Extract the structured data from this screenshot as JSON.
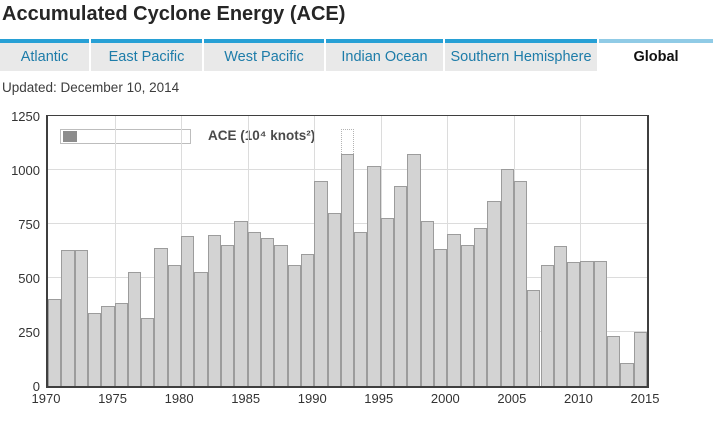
{
  "header": {
    "title": "Accumulated Cyclone Energy (ACE)"
  },
  "tabs": [
    {
      "label": "Atlantic",
      "active": false
    },
    {
      "label": "East Pacific",
      "active": false
    },
    {
      "label": "West Pacific",
      "active": false
    },
    {
      "label": "Indian Ocean",
      "active": false
    },
    {
      "label": "Southern Hemisphere",
      "active": false
    },
    {
      "label": "Global",
      "active": true
    }
  ],
  "updated_text": "Updated: December 10, 2014",
  "colors": {
    "tab_stripe": "#27a0d5",
    "tab_stripe_active": "#90cbe6",
    "tab_background": "#e9e9e9",
    "tab_text": "#1d7ca9",
    "bar_fill": "#d3d3d3",
    "bar_border": "#9c9c9c",
    "legend_swatch": "#8c8c8c",
    "gridline": "#dcdcdc",
    "plot_border": "#3f3f3f",
    "tick_label": "#333333"
  },
  "chart_data": {
    "type": "bar",
    "title": "",
    "legend_label": "ACE (10⁴ knots²)",
    "xlabel": "",
    "ylabel": "",
    "ylim": [
      0,
      1250
    ],
    "yticks": [
      0,
      250,
      500,
      750,
      1000,
      1250
    ],
    "xticks": [
      1970,
      1975,
      1980,
      1985,
      1990,
      1995,
      2000,
      2005,
      2010,
      2015
    ],
    "grid": true,
    "legend_position": "top-left",
    "x": [
      1970,
      1971,
      1972,
      1973,
      1974,
      1975,
      1976,
      1977,
      1978,
      1979,
      1980,
      1981,
      1982,
      1983,
      1984,
      1985,
      1986,
      1987,
      1988,
      1989,
      1990,
      1991,
      1992,
      1993,
      1994,
      1995,
      1996,
      1997,
      1998,
      1999,
      2000,
      2001,
      2002,
      2003,
      2004,
      2005,
      2006,
      2007,
      2008,
      2009,
      2010,
      2011,
      2012,
      2013,
      2014
    ],
    "values": [
      405,
      630,
      630,
      340,
      370,
      385,
      530,
      315,
      640,
      560,
      695,
      530,
      700,
      655,
      765,
      715,
      685,
      655,
      560,
      610,
      950,
      800,
      1075,
      715,
      1020,
      780,
      925,
      1075,
      765,
      635,
      705,
      655,
      730,
      855,
      1005,
      950,
      445,
      560,
      650,
      575,
      580,
      580,
      230,
      105,
      250
    ],
    "annotations": [
      {
        "year": 1992,
        "value": 1190,
        "style": "dotted-outline"
      }
    ]
  }
}
